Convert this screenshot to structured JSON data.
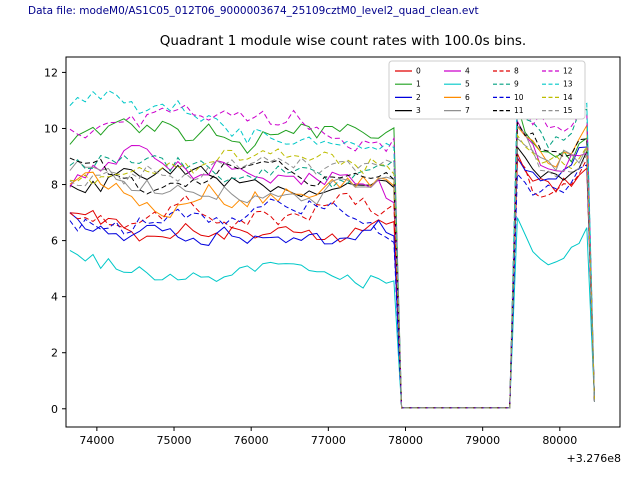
{
  "header": {
    "datafile_label": "Data file: modeM0/AS1C05_012T06_9000003674_25109cztM0_level2_quad_clean.evt",
    "datafile_color": "#00008b"
  },
  "chart_data": {
    "type": "line",
    "title": "Quadrant 1 module wise count rates with 100.0s bins.",
    "xlabel": "",
    "ylabel": "",
    "x_offset_label": "+3.276e8",
    "xticks": [
      74000,
      75000,
      76000,
      77000,
      78000,
      79000,
      80000
    ],
    "yticks": [
      0,
      2,
      4,
      6,
      8,
      10,
      12
    ],
    "xlim": [
      73600,
      80780
    ],
    "ylim": [
      -0.65,
      12.55
    ],
    "grid": false,
    "legend_position": "upper right",
    "legend_columns": 4,
    "x_start": 73650,
    "x_end": 80450,
    "bin": 100,
    "gap_start": 77900,
    "gap_end": 79400,
    "gap_value": 0.03,
    "series": [
      {
        "label": "0",
        "color": "#e00000",
        "dash": "",
        "level1": 7.1,
        "level2": 9.2,
        "noise": 0.38,
        "trend": 0.0,
        "seed": 101
      },
      {
        "label": "1",
        "color": "#1fa01f",
        "dash": "",
        "level1": 9.2,
        "level2": 10.7,
        "noise": 0.4,
        "trend": -0.2,
        "seed": 102
      },
      {
        "label": "2",
        "color": "#0000dd",
        "dash": "",
        "level1": 7.0,
        "level2": 9.0,
        "noise": 0.38,
        "trend": 0.1,
        "seed": 103
      },
      {
        "label": "3",
        "color": "#000000",
        "dash": "",
        "level1": 7.5,
        "level2": 9.7,
        "noise": 0.4,
        "trend": 0.0,
        "seed": 104
      },
      {
        "label": "4",
        "color": "#cc00cc",
        "dash": "",
        "level1": 8.2,
        "level2": 10.2,
        "noise": 0.4,
        "trend": 0.0,
        "seed": 105
      },
      {
        "label": "5",
        "color": "#00c8c8",
        "dash": "",
        "level1": 5.6,
        "level2": 7.1,
        "noise": 0.35,
        "trend": -0.3,
        "seed": 106
      },
      {
        "label": "6",
        "color": "#ff8c00",
        "dash": "",
        "level1": 7.9,
        "level2": 10.0,
        "noise": 0.4,
        "trend": 0.2,
        "seed": 107
      },
      {
        "label": "7",
        "color": "#909090",
        "dash": "",
        "level1": 8.5,
        "level2": 10.1,
        "noise": 0.42,
        "trend": -0.2,
        "seed": 108
      },
      {
        "label": "8",
        "color": "#e00000",
        "dash": "5,3",
        "level1": 6.6,
        "level2": 9.3,
        "noise": 0.4,
        "trend": 0.0,
        "seed": 109
      },
      {
        "label": "9",
        "color": "#00a080",
        "dash": "5,3",
        "level1": 8.9,
        "level2": 10.8,
        "noise": 0.42,
        "trend": 0.2,
        "seed": 110
      },
      {
        "label": "10",
        "color": "#0000dd",
        "dash": "5,3",
        "level1": 6.3,
        "level2": 8.8,
        "noise": 0.4,
        "trend": 0.0,
        "seed": 111
      },
      {
        "label": "11",
        "color": "#000000",
        "dash": "5,3",
        "level1": 8.7,
        "level2": 10.5,
        "noise": 0.42,
        "trend": -0.2,
        "seed": 112
      },
      {
        "label": "12",
        "color": "#cc00cc",
        "dash": "5,3",
        "level1": 9.6,
        "level2": 11.2,
        "noise": 0.42,
        "trend": -0.3,
        "seed": 113
      },
      {
        "label": "13",
        "color": "#00c8c8",
        "dash": "5,3",
        "level1": 10.6,
        "level2": 11.8,
        "noise": 0.4,
        "trend": -0.5,
        "seed": 114
      },
      {
        "label": "14",
        "color": "#bdbd00",
        "dash": "5,3",
        "level1": 8.1,
        "level2": 10.0,
        "noise": 0.4,
        "trend": 0.0,
        "seed": 115
      },
      {
        "label": "15",
        "color": "#909090",
        "dash": "5,3",
        "level1": 7.8,
        "level2": 9.9,
        "noise": 0.4,
        "trend": 0.2,
        "seed": 116
      }
    ]
  }
}
